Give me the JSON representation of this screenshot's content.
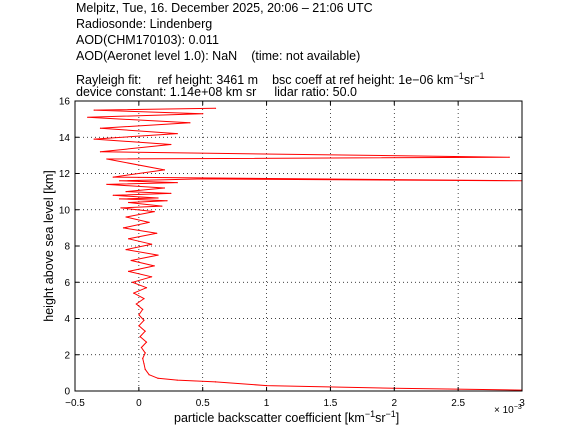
{
  "header": {
    "line1": "Melpitz, Tue, 16. December 2025, 20:06 – 21:06 UTC",
    "line2": "Radiosonde: Lindenberg",
    "line3": "AOD(CHM170103): 0.011",
    "line4_a": "AOD(Aeronet level 1.0): NaN",
    "line4_b": "(time: not available)",
    "rayleigh_label": "Rayleigh fit:",
    "ref_height": "ref height: 3461 m",
    "bsc_coeff": "bsc coeff at ref height: 1e−06 km",
    "bsc_unit_exp1": "−1",
    "bsc_unit_sr": "sr",
    "bsc_unit_exp2": "−1",
    "device_constant": "device constant: 1.14e+08 km sr",
    "lidar_ratio": "lidar ratio: 50.0"
  },
  "chart_data": {
    "type": "line",
    "xlabel": "particle backscatter coefficient [km⁻¹sr⁻¹]",
    "xlabel_parts": {
      "base": "particle backscatter coefficient [km",
      "exp1": "−1",
      "mid": "sr",
      "exp2": "−1",
      "end": "]"
    },
    "ylabel": "height above sea level [km]",
    "x_multiplier": "× 10",
    "x_multiplier_exp": "−3",
    "xlim": [
      -0.0005,
      0.003
    ],
    "ylim": [
      0,
      16
    ],
    "xticks": [
      -0.5,
      0,
      0.5,
      1,
      1.5,
      2,
      2.5,
      3
    ],
    "xtick_labels": [
      "−0.5",
      "0",
      "0.5",
      "1",
      "1.5",
      "2",
      "2.5",
      "3"
    ],
    "yticks": [
      0,
      2,
      4,
      6,
      8,
      10,
      12,
      14,
      16
    ],
    "ytick_labels": [
      "0",
      "2",
      "4",
      "6",
      "8",
      "10",
      "12",
      "14",
      "16"
    ],
    "grid": true,
    "line_color": "#ff0000",
    "series": [
      {
        "unit_note": "x values in units of 1e-3 km^-1 sr^-1, y values in km",
        "x": [
          3.0,
          2.0,
          1.0,
          0.6,
          0.3,
          0.15,
          0.08,
          0.05,
          0.04,
          0.03,
          0.05,
          0.02,
          0.06,
          0.01,
          0.05,
          0.0,
          0.04,
          0.0,
          0.03,
          -0.02,
          0.04,
          -0.04,
          0.06,
          -0.05,
          0.1,
          -0.08,
          0.12,
          -0.06,
          0.15,
          -0.1,
          0.1,
          -0.08,
          0.14,
          -0.12,
          0.08,
          -0.1,
          0.12,
          -0.14,
          0.18,
          -0.08,
          0.22,
          -0.15,
          0.15,
          -0.2,
          0.25,
          -0.1,
          0.2,
          -0.25,
          0.3,
          -0.15,
          0.5,
          3.0,
          -0.2,
          0.2,
          -0.25,
          2.9,
          -0.3,
          0.25,
          -0.35,
          0.3,
          -0.3,
          0.4,
          -0.4,
          0.5,
          -0.35,
          0.6
        ],
        "y": [
          0.05,
          0.15,
          0.3,
          0.5,
          0.6,
          0.7,
          0.9,
          1.2,
          1.5,
          1.8,
          2.1,
          2.4,
          2.7,
          3.0,
          3.3,
          3.6,
          3.9,
          4.2,
          4.5,
          4.8,
          5.1,
          5.4,
          5.7,
          6.0,
          6.3,
          6.6,
          6.9,
          7.2,
          7.5,
          7.8,
          8.1,
          8.4,
          8.7,
          9.0,
          9.3,
          9.6,
          9.9,
          10.1,
          10.2,
          10.4,
          10.5,
          10.6,
          10.65,
          10.8,
          10.9,
          11.0,
          11.2,
          11.4,
          11.5,
          11.6,
          11.7,
          11.6,
          11.8,
          12.2,
          12.8,
          12.9,
          13.2,
          13.6,
          13.9,
          14.2,
          14.5,
          14.8,
          15.1,
          15.3,
          15.5,
          15.6
        ]
      }
    ]
  }
}
